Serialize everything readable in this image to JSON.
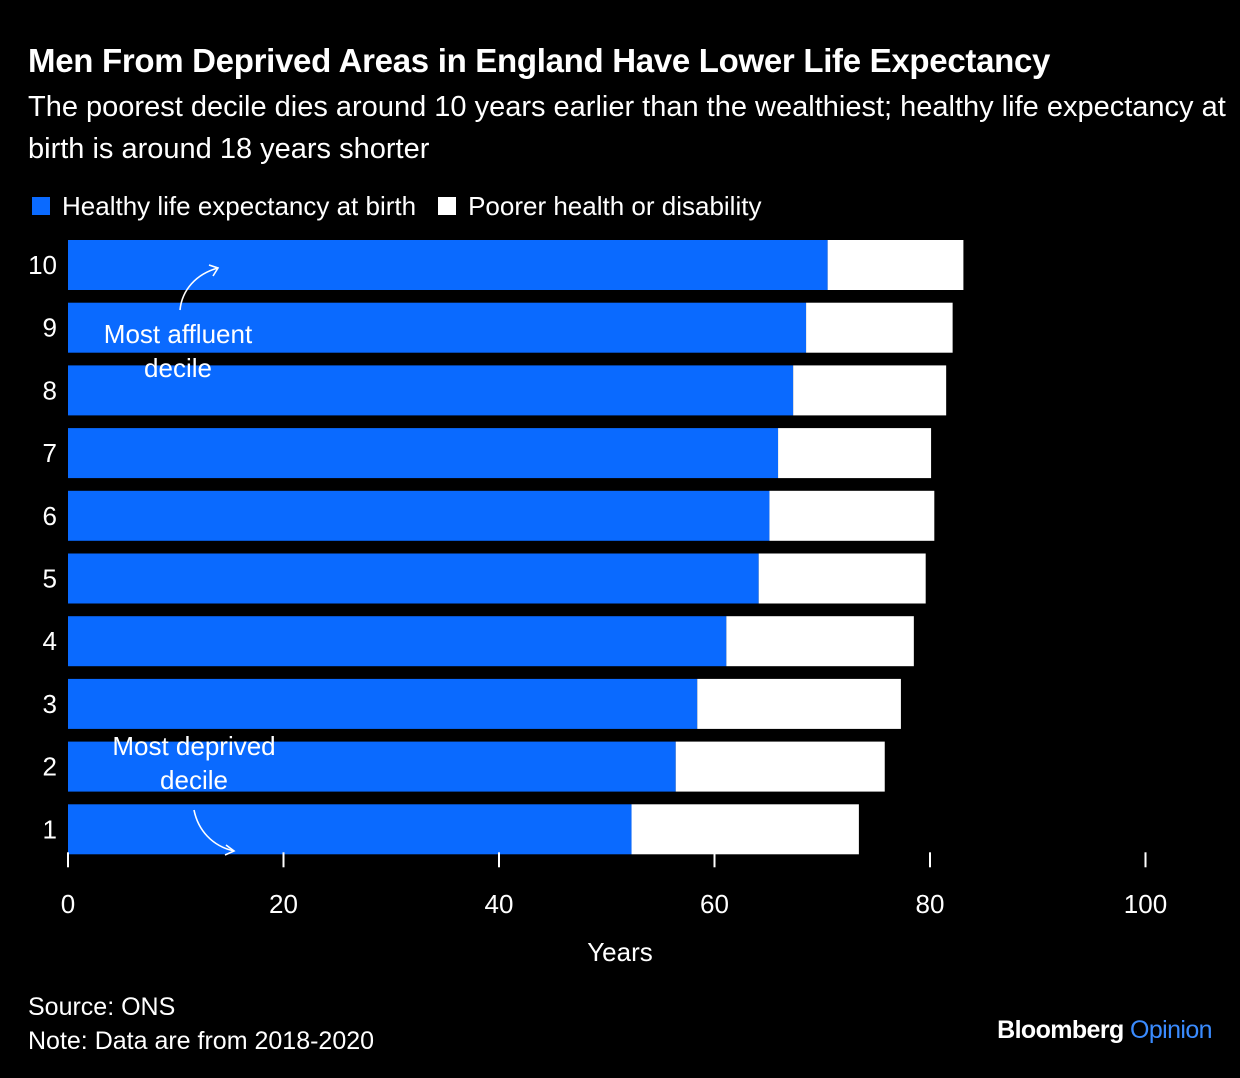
{
  "title": "Men From Deprived Areas in England Have Lower Life Expectancy",
  "subtitle": "The poorest decile dies around 10 years earlier than the wealthiest; healthy life expectancy at birth is around 18 years shorter",
  "legend": {
    "healthy": "Healthy life expectancy at birth",
    "poorer": "Poorer health or disability"
  },
  "colors": {
    "healthy": "#0a6aff",
    "poorer": "#ffffff",
    "background": "#000000"
  },
  "annotations": {
    "affluent": [
      "Most affluent",
      "decile"
    ],
    "deprived": [
      "Most deprived",
      "decile"
    ]
  },
  "footer": {
    "source": "Source: ONS",
    "note": "Note: Data are from 2018-2020"
  },
  "brand": {
    "name": "Bloomberg",
    "section": "Opinion"
  },
  "chart_data": {
    "type": "bar",
    "orientation": "horizontal",
    "stacked": true,
    "categories": [
      "10",
      "9",
      "8",
      "7",
      "6",
      "5",
      "4",
      "3",
      "2",
      "1"
    ],
    "series": [
      {
        "name": "Healthy life expectancy at birth",
        "values": [
          70.5,
          68.5,
          67.3,
          65.9,
          65.1,
          64.1,
          61.1,
          58.4,
          56.4,
          52.3
        ]
      },
      {
        "name": "Poorer health or disability",
        "values": [
          12.6,
          13.6,
          14.2,
          14.2,
          15.3,
          15.5,
          17.4,
          18.9,
          19.4,
          21.1
        ]
      }
    ],
    "xlabel": "Years",
    "xlim": [
      0,
      100
    ],
    "xticks": [
      0,
      20,
      40,
      60,
      80,
      100
    ],
    "grid": false,
    "legend_position": "top-left"
  }
}
